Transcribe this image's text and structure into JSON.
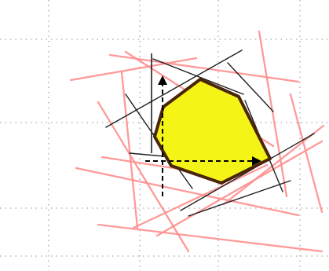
{
  "diagram": {
    "type": "polygon-from-line-constraints",
    "background_color": "#ffffff",
    "colors": {
      "grid_dots": "#a7a7a7",
      "red_lines": "#ff8e8e",
      "black_lines": "#1f1f1f",
      "polygon_fill": "#f4f416",
      "polygon_stroke": "#4a2509",
      "axes": "#000000"
    },
    "features": {
      "dotted_grid": true,
      "red_constraint_lines": true,
      "black_boundary_lines": true,
      "filled_polygon": true,
      "dashed_axes_with_arrowheads": true
    }
  }
}
